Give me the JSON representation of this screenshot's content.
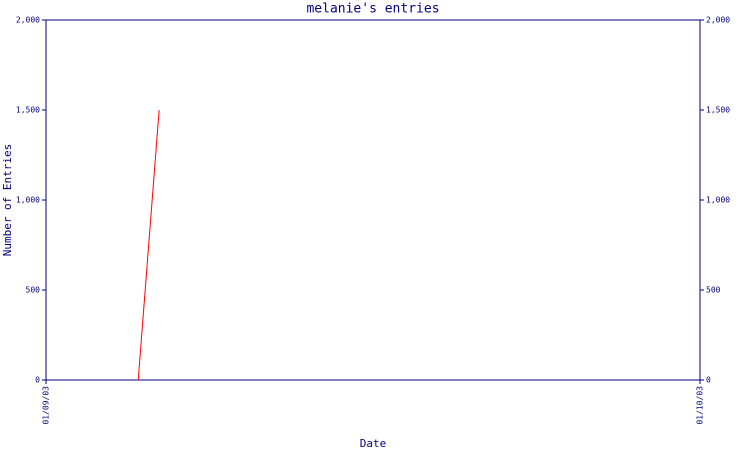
{
  "chart_data": {
    "type": "line",
    "title": "melanie's entries",
    "x_label": "Date",
    "y_label": "Number of Entries",
    "xlim": [
      0,
      1
    ],
    "xticks": [
      {
        "value": 0,
        "label": "01/09/03"
      },
      {
        "value": 1,
        "label": "01/10/03"
      }
    ],
    "ylim": [
      0,
      2000
    ],
    "yticks": [
      0,
      500,
      {
        "value": 1000,
        "label": "1,000"
      },
      {
        "value": 1500,
        "label": "1,500"
      },
      {
        "value": 2000,
        "label": "2,000"
      }
    ],
    "y2lim": [
      0,
      2000
    ],
    "y2ticks": [
      0,
      500,
      {
        "value": 1000,
        "label": "1,000"
      },
      {
        "value": 1500,
        "label": "1,500"
      },
      {
        "value": 2000,
        "label": "2,000"
      }
    ],
    "grid": false,
    "series": [
      {
        "color": "#ff0000",
        "x": [
          0.141,
          0.173
        ],
        "values": [
          0,
          1500
        ]
      }
    ]
  }
}
